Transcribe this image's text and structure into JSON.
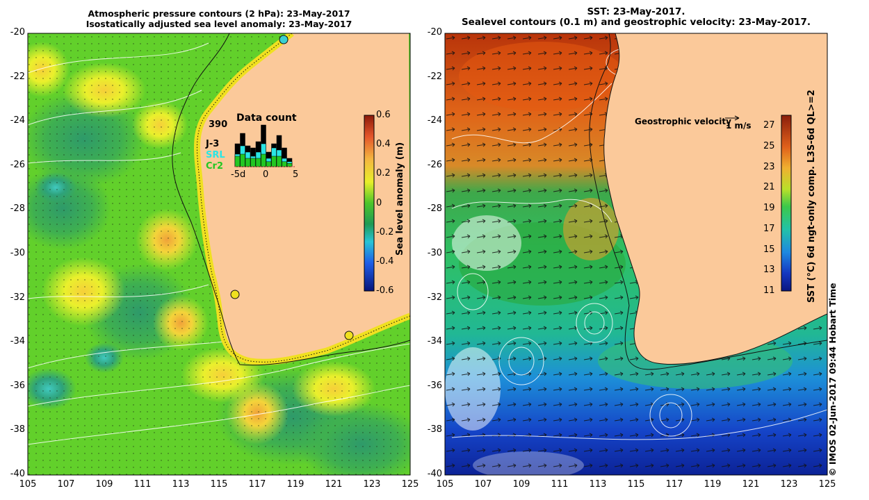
{
  "left_panel": {
    "title_line1": "Atmospheric pressure contours (2 hPa): 23-May-2017",
    "title_line2": "Isostatically adjusted sea level anomaly: 23-May-2017",
    "colorbar": {
      "label": "Sea level anomaly (m)",
      "ticks": [
        "0.6",
        "0.4",
        "0.2",
        "0",
        "-0.2",
        "-0.4",
        "-0.6"
      ]
    },
    "inset": {
      "title": "Data count",
      "max_count": "390",
      "legend": [
        {
          "label": "J-3",
          "color": "#000000"
        },
        {
          "label": "SRL",
          "color": "#29e5e5"
        },
        {
          "label": "Cr2",
          "color": "#22c722"
        }
      ],
      "x_ticks": [
        "-5d",
        "0",
        "5"
      ],
      "bars": [
        {
          "black": 0.55,
          "cyan": 0.3,
          "green": 0.25
        },
        {
          "black": 0.8,
          "cyan": 0.5,
          "green": 0.3
        },
        {
          "black": 0.5,
          "cyan": 0.35,
          "green": 0.2
        },
        {
          "black": 0.45,
          "cyan": 0.25,
          "green": 0.2
        },
        {
          "black": 0.6,
          "cyan": 0.35,
          "green": 0.2
        },
        {
          "black": 1.0,
          "cyan": 0.55,
          "green": 0.3
        },
        {
          "black": 0.35,
          "cyan": 0.2,
          "green": 0.12
        },
        {
          "black": 0.55,
          "cyan": 0.45,
          "green": 0.25
        },
        {
          "black": 0.75,
          "cyan": 0.4,
          "green": 0.25
        },
        {
          "black": 0.45,
          "cyan": 0.2,
          "green": 0.12
        },
        {
          "black": 0.2,
          "cyan": 0.12,
          "green": 0.08
        }
      ]
    }
  },
  "right_panel": {
    "title_line1": "SST: 23-May-2017.",
    "title_line2": "Sealevel contours (0.1 m) and geostrophic velocity: 23-May-2017.",
    "velocity_label": "Geostrophic velocity",
    "velocity_scale": "1 m/s",
    "colorbar": {
      "label": "SST (°C) 6d ngt-only comp. L3S-6d QL>=2",
      "ticks": [
        "27",
        "25",
        "23",
        "21",
        "19",
        "17",
        "15",
        "13",
        "11"
      ]
    },
    "credit": "© IMOS 02-Jun-2017 09:44 Hobart Time"
  },
  "axes": {
    "lon": [
      "105",
      "107",
      "109",
      "111",
      "113",
      "115",
      "117",
      "119",
      "121",
      "123",
      "125"
    ],
    "lat": [
      "-20",
      "-22",
      "-24",
      "-26",
      "-28",
      "-30",
      "-32",
      "-34",
      "-36",
      "-38",
      "-40"
    ]
  },
  "colors": {
    "land": "#fbc99a",
    "sla_low": "#1f9a55",
    "sla_mid": "#62d02b",
    "sla_high": "#f4e82a",
    "sst_warm": "#d94a0a",
    "sst_cool": "#0f2fb0"
  }
}
